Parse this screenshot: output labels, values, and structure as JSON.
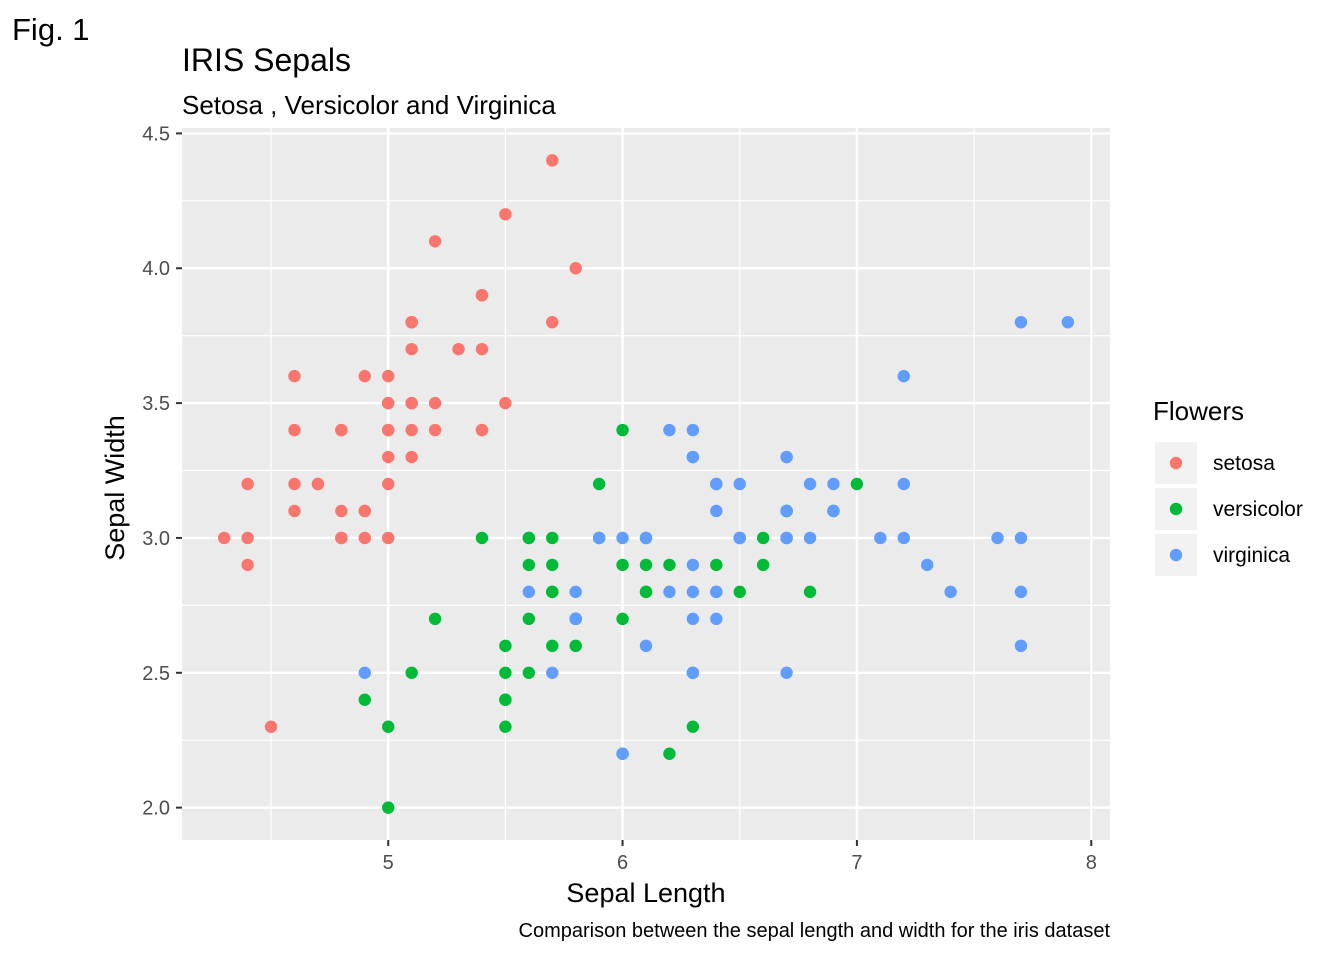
{
  "fig_label": "Fig. 1",
  "chart_data": {
    "type": "scatter",
    "title": "IRIS Sepals",
    "subtitle": "Setosa , Versicolor and Virginica",
    "xlabel": "Sepal Length",
    "ylabel": "Sepal Width",
    "caption": "Comparison between the sepal length and width for the iris dataset",
    "xlim": [
      4.12,
      8.08
    ],
    "ylim": [
      1.88,
      4.52
    ],
    "x_ticks": [
      5,
      6,
      7,
      8
    ],
    "x_tick_labels": [
      "5",
      "6",
      "7",
      "8"
    ],
    "y_ticks": [
      2.0,
      2.5,
      3.0,
      3.5,
      4.0,
      4.5
    ],
    "y_tick_labels": [
      "2.0",
      "2.5",
      "3.0",
      "3.5",
      "4.0",
      "4.5"
    ],
    "grid": true,
    "legend": {
      "title": "Flowers",
      "position": "right"
    },
    "panel_color": "#EBEBEB",
    "series": [
      {
        "name": "setosa",
        "color": "#F8766D",
        "x": [
          5.1,
          4.9,
          4.7,
          4.6,
          5.0,
          5.4,
          4.6,
          5.0,
          4.4,
          4.9,
          5.4,
          4.8,
          4.8,
          4.3,
          5.8,
          5.7,
          5.4,
          5.1,
          5.7,
          5.1,
          5.4,
          5.1,
          4.6,
          5.1,
          4.8,
          5.0,
          5.0,
          5.2,
          5.2,
          4.7,
          4.8,
          5.4,
          5.2,
          5.5,
          4.9,
          5.0,
          5.5,
          4.9,
          4.4,
          5.1,
          5.0,
          4.5,
          4.4,
          5.0,
          5.1,
          4.8,
          5.1,
          4.6,
          5.3,
          5.0
        ],
        "y": [
          3.5,
          3.0,
          3.2,
          3.1,
          3.6,
          3.9,
          3.4,
          3.4,
          2.9,
          3.1,
          3.7,
          3.4,
          3.0,
          3.0,
          4.0,
          4.4,
          3.9,
          3.5,
          3.8,
          3.8,
          3.4,
          3.7,
          3.6,
          3.3,
          3.4,
          3.0,
          3.4,
          3.5,
          3.4,
          3.2,
          3.1,
          3.4,
          4.1,
          4.2,
          3.1,
          3.2,
          3.5,
          3.6,
          3.0,
          3.4,
          3.5,
          2.3,
          3.2,
          3.5,
          3.8,
          3.0,
          3.8,
          3.2,
          3.7,
          3.3
        ]
      },
      {
        "name": "versicolor",
        "color": "#00BA38",
        "x": [
          7.0,
          6.4,
          6.9,
          5.5,
          6.5,
          5.7,
          6.3,
          4.9,
          6.6,
          5.2,
          5.0,
          5.9,
          6.0,
          6.1,
          5.6,
          6.7,
          5.6,
          5.8,
          6.2,
          5.6,
          5.9,
          6.1,
          6.3,
          6.1,
          6.4,
          6.6,
          6.8,
          6.7,
          6.0,
          5.7,
          5.5,
          5.5,
          5.8,
          6.0,
          5.4,
          6.0,
          6.7,
          6.3,
          5.6,
          5.5,
          5.5,
          6.1,
          5.8,
          5.0,
          5.6,
          5.7,
          5.7,
          6.2,
          5.1,
          5.7
        ],
        "y": [
          3.2,
          3.2,
          3.1,
          2.3,
          2.8,
          2.8,
          3.3,
          2.4,
          2.9,
          2.7,
          2.0,
          3.0,
          2.2,
          2.9,
          2.9,
          3.1,
          3.0,
          2.7,
          2.2,
          2.5,
          3.2,
          2.8,
          2.5,
          2.8,
          2.9,
          3.0,
          2.8,
          3.0,
          2.9,
          2.6,
          2.4,
          2.4,
          2.7,
          2.7,
          3.0,
          3.4,
          3.1,
          2.3,
          3.0,
          2.5,
          2.6,
          3.0,
          2.6,
          2.3,
          2.7,
          3.0,
          2.9,
          2.9,
          2.5,
          2.8
        ]
      },
      {
        "name": "virginica",
        "color": "#619CFF",
        "x": [
          6.3,
          5.8,
          7.1,
          6.3,
          6.5,
          7.6,
          4.9,
          7.3,
          6.7,
          7.2,
          6.5,
          6.4,
          6.8,
          5.7,
          5.8,
          6.4,
          6.5,
          7.7,
          7.7,
          6.0,
          6.9,
          5.6,
          7.7,
          6.3,
          6.7,
          7.2,
          6.2,
          6.1,
          6.4,
          7.2,
          7.4,
          7.9,
          6.4,
          6.3,
          6.1,
          7.7,
          6.3,
          6.4,
          6.0,
          6.9,
          6.7,
          6.9,
          5.8,
          6.8,
          6.7,
          6.7,
          6.3,
          6.5,
          6.2,
          5.9
        ],
        "y": [
          3.3,
          2.7,
          3.0,
          2.9,
          3.0,
          3.0,
          2.5,
          2.9,
          2.5,
          3.6,
          3.2,
          2.7,
          3.0,
          2.5,
          2.8,
          3.2,
          3.0,
          3.8,
          2.6,
          2.2,
          3.2,
          2.8,
          2.8,
          2.7,
          3.3,
          3.2,
          2.8,
          3.0,
          2.8,
          3.0,
          2.8,
          3.8,
          2.8,
          2.8,
          2.6,
          3.0,
          3.4,
          3.1,
          3.0,
          3.1,
          3.1,
          3.1,
          2.7,
          3.2,
          3.3,
          3.0,
          2.5,
          3.0,
          3.4,
          3.0
        ]
      }
    ]
  }
}
